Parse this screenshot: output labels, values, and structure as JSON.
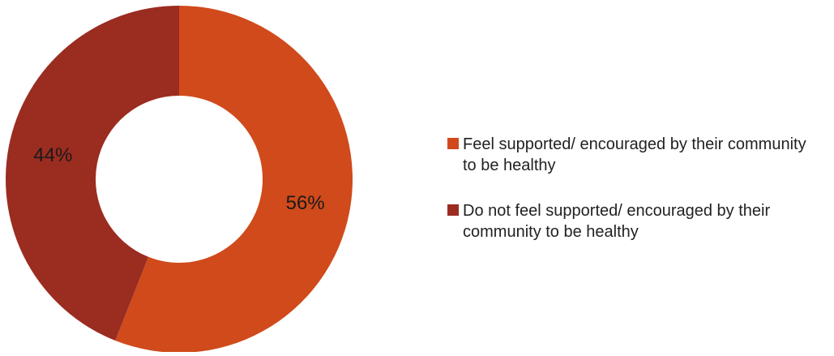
{
  "chart_data": {
    "type": "pie",
    "donut": true,
    "categories": [
      "Feel supported/ encouraged by their community to be healthy",
      "Do not feel supported/ encouraged by their community to be healthy"
    ],
    "values": [
      56,
      44
    ],
    "value_labels": [
      "56%",
      "44%"
    ],
    "colors": [
      "#D04A1B",
      "#9B2C20"
    ],
    "legend_position": "right"
  }
}
